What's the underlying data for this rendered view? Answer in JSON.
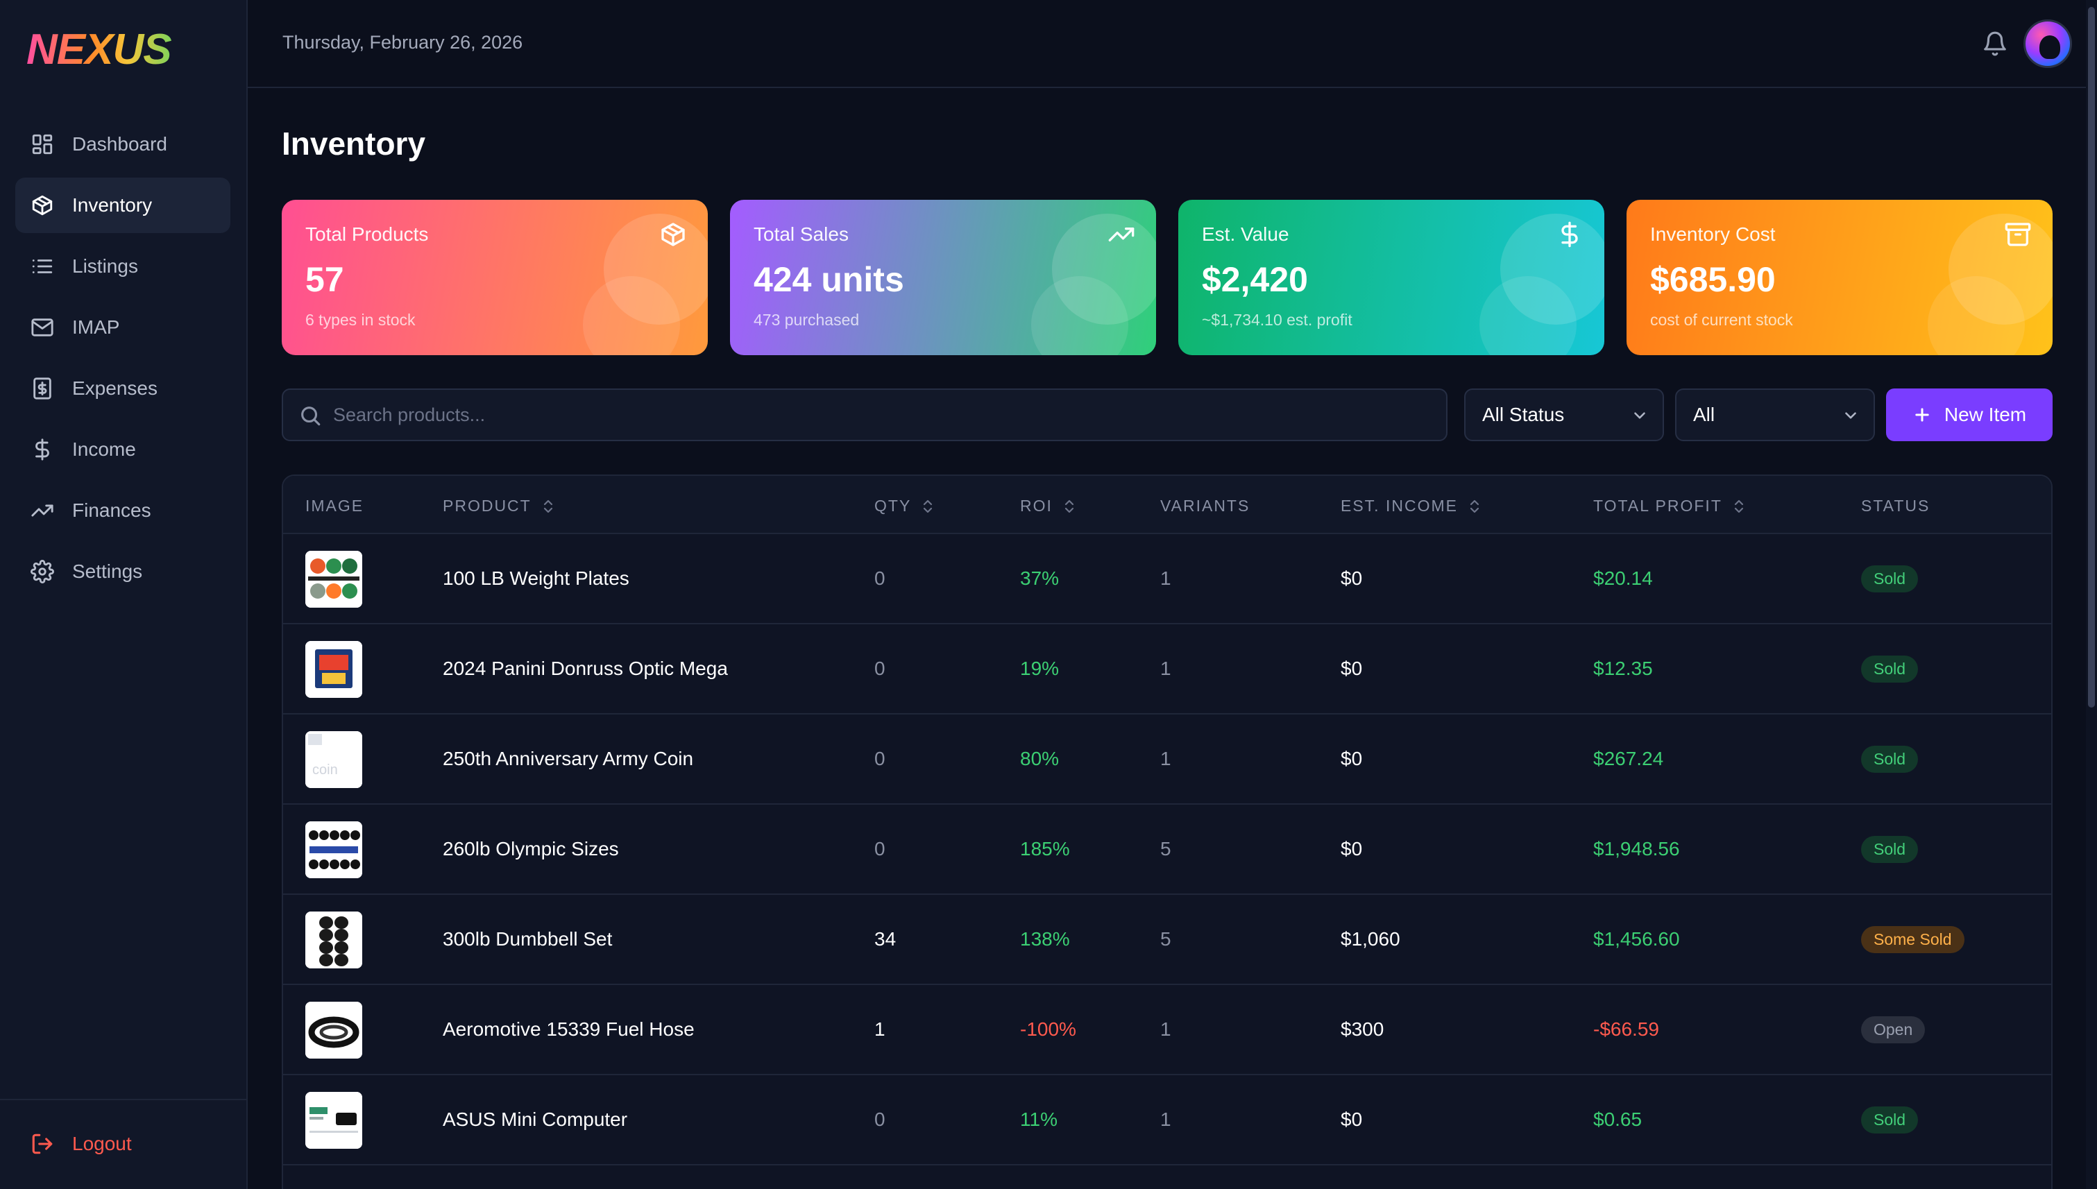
{
  "app": {
    "logo": "NEXUS"
  },
  "sidebar": {
    "items": [
      {
        "label": "Dashboard",
        "icon": "dashboard-icon"
      },
      {
        "label": "Inventory",
        "icon": "box-icon",
        "active": true
      },
      {
        "label": "Listings",
        "icon": "list-icon"
      },
      {
        "label": "IMAP",
        "icon": "mail-icon"
      },
      {
        "label": "Expenses",
        "icon": "receipt-icon"
      },
      {
        "label": "Income",
        "icon": "dollar-icon"
      },
      {
        "label": "Finances",
        "icon": "trend-icon"
      },
      {
        "label": "Settings",
        "icon": "gear-icon"
      }
    ],
    "logout_label": "Logout"
  },
  "header": {
    "date": "Thursday, February 26, 2026"
  },
  "page": {
    "title": "Inventory"
  },
  "stats": [
    {
      "label": "Total Products",
      "value": "57",
      "sub": "6 types in stock",
      "icon": "box-icon",
      "gradient": [
        "#ff4f92",
        "#ff9a3c"
      ]
    },
    {
      "label": "Total Sales",
      "value": "424 units",
      "sub": "473 purchased",
      "icon": "trend-up-icon",
      "gradient": [
        "#a45cff",
        "#2fd07a"
      ]
    },
    {
      "label": "Est. Value",
      "value": "$2,420",
      "sub": "~$1,734.10 est. profit",
      "icon": "dollar-icon",
      "gradient": [
        "#0fb46a",
        "#17c7d6"
      ]
    },
    {
      "label": "Inventory Cost",
      "value": "$685.90",
      "sub": "cost of current stock",
      "icon": "archive-icon",
      "gradient": [
        "#ff7a1a",
        "#ffc21a"
      ]
    }
  ],
  "toolbar": {
    "search_placeholder": "Search products...",
    "status_filter": "All Status",
    "type_filter": "All",
    "new_label": "New Item"
  },
  "table": {
    "columns": [
      "IMAGE",
      "PRODUCT",
      "QTY",
      "ROI",
      "VARIANTS",
      "EST. INCOME",
      "TOTAL PROFIT",
      "STATUS"
    ],
    "rows": [
      {
        "product": "100 LB Weight Plates",
        "qty": "0",
        "roi": "37%",
        "variants": "1",
        "est_income": "$0",
        "total_profit": "$20.14",
        "status": "Sold",
        "roi_tone": "green",
        "profit_tone": "green",
        "qty_tone": "muted",
        "status_tone": "sold"
      },
      {
        "product": "2024 Panini Donruss Optic Mega",
        "qty": "0",
        "roi": "19%",
        "variants": "1",
        "est_income": "$0",
        "total_profit": "$12.35",
        "status": "Sold",
        "roi_tone": "green",
        "profit_tone": "green",
        "qty_tone": "muted",
        "status_tone": "sold"
      },
      {
        "product": "250th Anniversary Army Coin",
        "qty": "0",
        "roi": "80%",
        "variants": "1",
        "est_income": "$0",
        "total_profit": "$267.24",
        "status": "Sold",
        "roi_tone": "green",
        "profit_tone": "green",
        "qty_tone": "muted",
        "status_tone": "sold"
      },
      {
        "product": "260lb Olympic Sizes",
        "qty": "0",
        "roi": "185%",
        "variants": "5",
        "est_income": "$0",
        "total_profit": "$1,948.56",
        "status": "Sold",
        "roi_tone": "green",
        "profit_tone": "green",
        "qty_tone": "muted",
        "status_tone": "sold"
      },
      {
        "product": "300lb Dumbbell Set",
        "qty": "34",
        "roi": "138%",
        "variants": "5",
        "est_income": "$1,060",
        "total_profit": "$1,456.60",
        "status": "Some Sold",
        "roi_tone": "green",
        "profit_tone": "green",
        "qty_tone": "white",
        "status_tone": "some"
      },
      {
        "product": "Aeromotive 15339 Fuel Hose",
        "qty": "1",
        "roi": "-100%",
        "variants": "1",
        "est_income": "$300",
        "total_profit": "-$66.59",
        "status": "Open",
        "roi_tone": "red",
        "profit_tone": "red",
        "qty_tone": "white",
        "status_tone": "open"
      },
      {
        "product": "ASUS Mini Computer",
        "qty": "0",
        "roi": "11%",
        "variants": "1",
        "est_income": "$0",
        "total_profit": "$0.65",
        "status": "Sold",
        "roi_tone": "green",
        "profit_tone": "green",
        "qty_tone": "muted",
        "status_tone": "sold"
      }
    ]
  }
}
